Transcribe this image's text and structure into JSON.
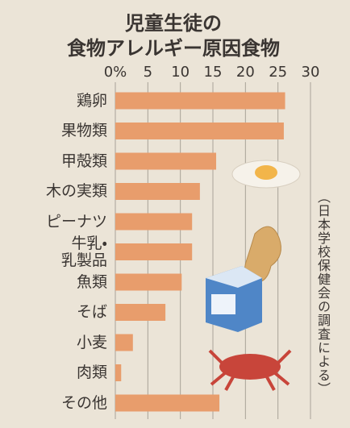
{
  "chart_data": {
    "type": "bar",
    "orientation": "horizontal",
    "title": [
      "児童生徒の",
      "食物アレルギー原因食物"
    ],
    "categories": [
      "鶏卵",
      "果物類",
      "甲殻類",
      "木の実類",
      "ピーナツ",
      "牛乳・\n乳製品",
      "魚類",
      "そば",
      "小麦",
      "肉類",
      "その他"
    ],
    "values": [
      26.1,
      25.9,
      15.5,
      13.0,
      11.8,
      11.8,
      10.2,
      7.7,
      2.7,
      0.9,
      16.0
    ],
    "color": "#e89d6c",
    "xlim": [
      0,
      30
    ],
    "xticks": [
      {
        "value": 0,
        "label": "0%"
      },
      5,
      10,
      15,
      20,
      25,
      30
    ],
    "grid": true,
    "annotation": "（日本学校保健会の調査による）"
  }
}
